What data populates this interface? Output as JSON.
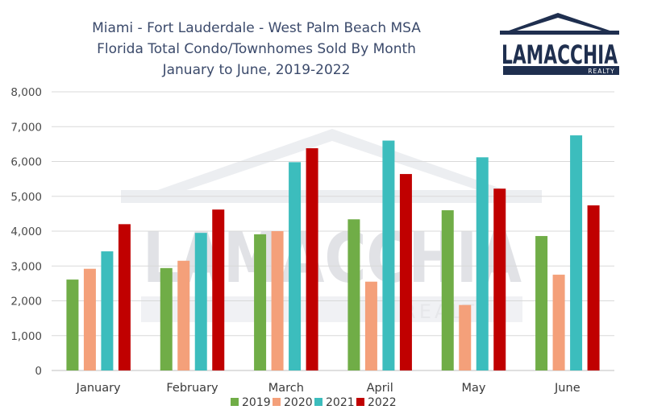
{
  "chart_data": {
    "type": "bar",
    "title_lines": [
      "Miami - Fort Lauderdale - West Palm Beach MSA",
      "Florida Total Condo/Townhomes Sold By Month",
      "January to June, 2019-2022"
    ],
    "categories": [
      "January",
      "February",
      "March",
      "April",
      "May",
      "June"
    ],
    "series": [
      {
        "name": "2019",
        "color": "#70ad47",
        "values": [
          2610,
          2940,
          3910,
          4340,
          4600,
          3860
        ]
      },
      {
        "name": "2020",
        "color": "#f4a07a",
        "values": [
          2920,
          3150,
          4000,
          2550,
          1880,
          2750
        ]
      },
      {
        "name": "2021",
        "color": "#3cbdbd",
        "values": [
          3420,
          3950,
          5980,
          6600,
          6120,
          6750
        ]
      },
      {
        "name": "2022",
        "color": "#c00000",
        "values": [
          4200,
          4620,
          6380,
          5640,
          5220,
          4740
        ]
      }
    ],
    "ylim": [
      0,
      8000
    ],
    "yticks": [
      "0",
      "1,000",
      "2,000",
      "3,000",
      "4,000",
      "5,000",
      "6,000",
      "7,000",
      "8,000"
    ],
    "grid": true,
    "legend_position": "bottom"
  },
  "logo": {
    "name": "LAMACCHIA",
    "sub": "REALTY",
    "color": "#1f2f4f"
  },
  "watermark": {
    "name": "LAMACCHIA",
    "sub": "REALTY"
  }
}
